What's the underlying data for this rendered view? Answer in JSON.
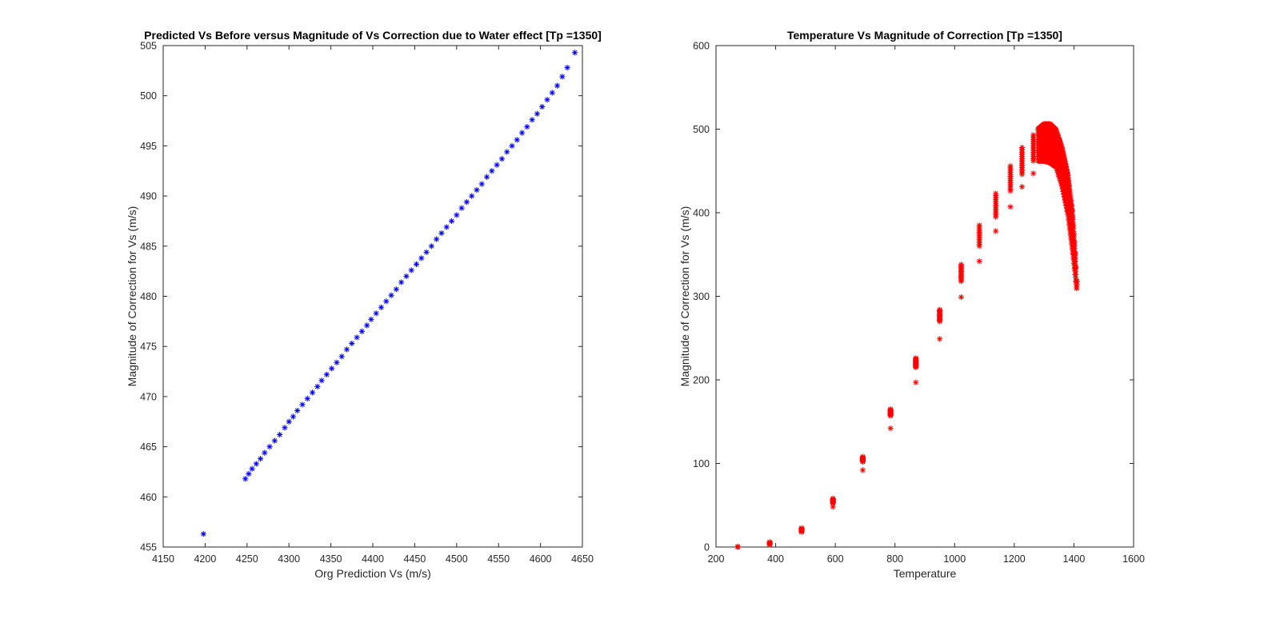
{
  "chart_data": [
    {
      "type": "scatter",
      "title": "Predicted Vs Before versus Magnitude of Vs Correction due to Water effect [Tp =1350]",
      "xlabel": "Org Prediction Vs (m/s)",
      "ylabel": "Magnitude of Correction for Vs (m/s)",
      "xlim": [
        4150,
        4650
      ],
      "ylim": [
        455,
        505
      ],
      "xticks": [
        "4150",
        "4200",
        "4250",
        "4300",
        "4350",
        "4400",
        "4450",
        "4500",
        "4550",
        "4600",
        "4650"
      ],
      "yticks": [
        "455",
        "460",
        "465",
        "470",
        "475",
        "480",
        "485",
        "490",
        "495",
        "500",
        "505"
      ],
      "marker": "*",
      "color": "#0000ff",
      "grid": false,
      "series": [
        {
          "points": [
            [
              4198,
              456.3
            ],
            [
              4248,
              461.8
            ],
            [
              4252,
              462.3
            ],
            [
              4256,
              462.8
            ],
            [
              4261,
              463.3
            ],
            [
              4266,
              463.8
            ],
            [
              4271,
              464.4
            ],
            [
              4277,
              465.0
            ],
            [
              4283,
              465.6
            ],
            [
              4289,
              466.2
            ],
            [
              4295,
              466.9
            ],
            [
              4300,
              467.5
            ],
            [
              4305,
              468.0
            ],
            [
              4310,
              468.6
            ],
            [
              4316,
              469.2
            ],
            [
              4322,
              469.8
            ],
            [
              4328,
              470.4
            ],
            [
              4334,
              471.0
            ],
            [
              4339,
              471.6
            ],
            [
              4345,
              472.2
            ],
            [
              4351,
              472.8
            ],
            [
              4357,
              473.4
            ],
            [
              4363,
              474.0
            ],
            [
              4369,
              474.7
            ],
            [
              4375,
              475.3
            ],
            [
              4381,
              475.9
            ],
            [
              4387,
              476.5
            ],
            [
              4393,
              477.1
            ],
            [
              4398,
              477.7
            ],
            [
              4404,
              478.3
            ],
            [
              4410,
              478.9
            ],
            [
              4416,
              479.5
            ],
            [
              4422,
              480.1
            ],
            [
              4428,
              480.7
            ],
            [
              4434,
              481.4
            ],
            [
              4440,
              482.0
            ],
            [
              4446,
              482.6
            ],
            [
              4452,
              483.2
            ],
            [
              4458,
              483.8
            ],
            [
              4464,
              484.4
            ],
            [
              4470,
              485.0
            ],
            [
              4476,
              485.7
            ],
            [
              4482,
              486.3
            ],
            [
              4488,
              486.9
            ],
            [
              4494,
              487.5
            ],
            [
              4500,
              488.1
            ],
            [
              4506,
              488.8
            ],
            [
              4512,
              489.4
            ],
            [
              4518,
              490.0
            ],
            [
              4524,
              490.6
            ],
            [
              4530,
              491.2
            ],
            [
              4536,
              491.9
            ],
            [
              4542,
              492.5
            ],
            [
              4548,
              493.1
            ],
            [
              4554,
              493.7
            ],
            [
              4560,
              494.4
            ],
            [
              4566,
              495.0
            ],
            [
              4572,
              495.6
            ],
            [
              4578,
              496.3
            ],
            [
              4584,
              496.9
            ],
            [
              4590,
              497.6
            ],
            [
              4596,
              498.2
            ],
            [
              4602,
              498.9
            ],
            [
              4608,
              499.6
            ],
            [
              4614,
              500.3
            ],
            [
              4620,
              501.0
            ],
            [
              4626,
              501.9
            ],
            [
              4632,
              502.8
            ],
            [
              4641,
              504.3
            ]
          ]
        }
      ]
    },
    {
      "type": "scatter",
      "title": "Temperature Vs Magnitude of Correction [Tp =1350]",
      "xlabel": "Temperature",
      "ylabel": "Magnitude of Correction for Vs (m/s)",
      "xlim": [
        200,
        1600
      ],
      "ylim": [
        0,
        600
      ],
      "xticks": [
        "200",
        "400",
        "600",
        "800",
        "1000",
        "1200",
        "1400",
        "1600"
      ],
      "yticks": [
        "0",
        "100",
        "200",
        "300",
        "400",
        "500",
        "600"
      ],
      "marker": "*",
      "color": "#ff0000",
      "grid": false,
      "clusters": [
        {
          "x": 273,
          "y_low": 0,
          "y_high": 1,
          "outlier": 0
        },
        {
          "x": 380,
          "y_low": 3,
          "y_high": 6,
          "outlier": 3
        },
        {
          "x": 487,
          "y_low": 18,
          "y_high": 23,
          "outlier": 18
        },
        {
          "x": 592,
          "y_low": 52,
          "y_high": 58,
          "outlier": 48
        },
        {
          "x": 692,
          "y_low": 102,
          "y_high": 108,
          "outlier": 92
        },
        {
          "x": 785,
          "y_low": 157,
          "y_high": 165,
          "outlier": 142
        },
        {
          "x": 870,
          "y_low": 215,
          "y_high": 226,
          "outlier": 197
        },
        {
          "x": 950,
          "y_low": 270,
          "y_high": 284,
          "outlier": 249
        },
        {
          "x": 1022,
          "y_low": 318,
          "y_high": 338,
          "outlier": 299
        },
        {
          "x": 1083,
          "y_low": 360,
          "y_high": 385,
          "outlier": 342
        },
        {
          "x": 1138,
          "y_low": 395,
          "y_high": 423,
          "outlier": 378
        },
        {
          "x": 1187,
          "y_low": 426,
          "y_high": 456,
          "outlier": 407
        },
        {
          "x": 1226,
          "y_low": 446,
          "y_high": 478,
          "outlier": 431
        },
        {
          "x": 1264,
          "y_low": 462,
          "y_high": 493,
          "outlier": 447
        }
      ],
      "dense_band": {
        "x_start": 1280,
        "x_end": 1410,
        "upper": [
          [
            1280,
            500
          ],
          [
            1300,
            506
          ],
          [
            1320,
            506
          ],
          [
            1340,
            499
          ],
          [
            1360,
            478
          ],
          [
            1380,
            445
          ],
          [
            1395,
            400
          ],
          [
            1403,
            360
          ],
          [
            1408,
            318
          ]
        ],
        "lower": [
          [
            1280,
            462
          ],
          [
            1300,
            462
          ],
          [
            1320,
            460
          ],
          [
            1340,
            455
          ],
          [
            1360,
            432
          ],
          [
            1380,
            398
          ],
          [
            1395,
            355
          ],
          [
            1403,
            330
          ],
          [
            1408,
            310
          ]
        ]
      }
    }
  ]
}
